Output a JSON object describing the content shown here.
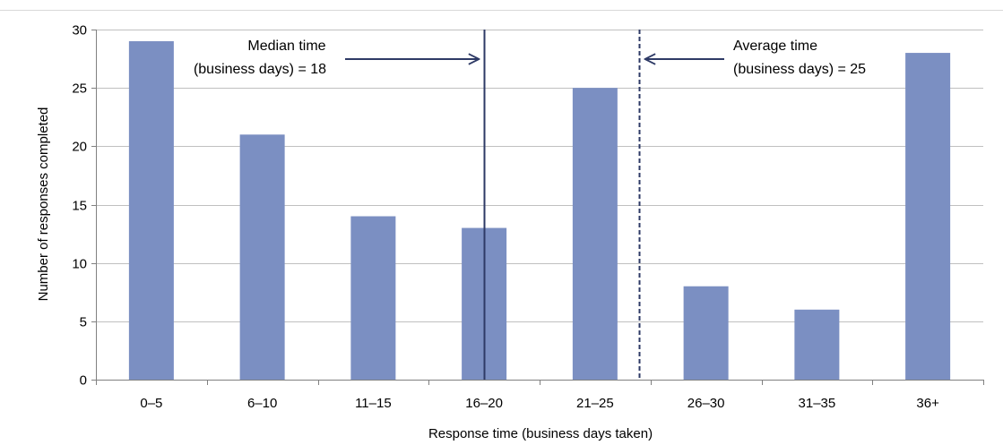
{
  "chart_data": {
    "type": "bar",
    "categories": [
      "0–5",
      "6–10",
      "11–15",
      "16–20",
      "21–25",
      "26–30",
      "31–35",
      "36+"
    ],
    "values": [
      29,
      21,
      14,
      13,
      25,
      8,
      6,
      28
    ],
    "xlabel": "Response time (business days taken)",
    "ylabel": "Number of responses completed",
    "ylim": [
      0,
      30
    ],
    "yticks": [
      0,
      5,
      10,
      15,
      20,
      25,
      30
    ],
    "grid": true,
    "bar_color": "#7b8fc2",
    "gridline_color": "#c0c0c0",
    "reference_lines": [
      {
        "name": "median",
        "x_position": 18,
        "style": "solid",
        "color": "#2e3a66",
        "label_lines": [
          "Median time",
          "(business days) = 18"
        ]
      },
      {
        "name": "average",
        "x_position": 25,
        "style": "dashed",
        "color": "#2e3a66",
        "label_lines": [
          "Average time",
          "(business days) = 25"
        ]
      }
    ]
  }
}
